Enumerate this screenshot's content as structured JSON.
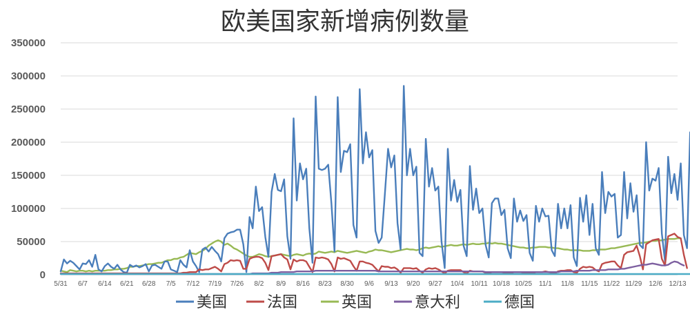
{
  "chart_data": {
    "type": "line",
    "title": "欧美国家新增病例数量",
    "xlabel": "",
    "ylabel": "",
    "ylim": [
      0,
      350000
    ],
    "yticks": [
      "0",
      "50000",
      "100000",
      "150000",
      "200000",
      "250000",
      "300000",
      "350000"
    ],
    "x_tick_labels": [
      "5/31",
      "6/7",
      "6/14",
      "6/21",
      "6/28",
      "7/5",
      "7/12",
      "7/19",
      "7/26",
      "8/2",
      "8/9",
      "8/16",
      "8/23",
      "8/30",
      "9/6",
      "9/13",
      "9/20",
      "9/27",
      "10/4",
      "10/11",
      "10/18",
      "10/25",
      "11/1",
      "11/8",
      "11/15",
      "11/22",
      "11/29",
      "12/6",
      "12/13"
    ],
    "grid": "horizontal",
    "legend_position": "bottom",
    "n_points": 197,
    "series": [
      {
        "name": "美国",
        "color": "#4a7ebb",
        "values": [
          5000,
          23000,
          17000,
          21000,
          18000,
          13000,
          8000,
          17000,
          16000,
          22000,
          12000,
          30000,
          8000,
          5000,
          13000,
          17000,
          12000,
          9000,
          15000,
          8000,
          4000,
          3000,
          15000,
          12000,
          14000,
          11000,
          13000,
          16000,
          5000,
          14000,
          15000,
          12000,
          9000,
          20000,
          20000,
          8000,
          6000,
          4000,
          22000,
          15000,
          11000,
          37000,
          20000,
          13000,
          4000,
          38000,
          41000,
          35000,
          42000,
          36000,
          31000,
          20000,
          55000,
          62000,
          64000,
          65000,
          68000,
          68000,
          46000,
          4000,
          87000,
          70000,
          133000,
          96000,
          102000,
          57000,
          27000,
          125000,
          152000,
          128000,
          126000,
          144000,
          58000,
          24000,
          236000,
          112000,
          168000,
          144000,
          160000,
          70000,
          18000,
          269000,
          160000,
          158000,
          160000,
          166000,
          108000,
          35000,
          268000,
          155000,
          187000,
          185000,
          197000,
          75000,
          56000,
          280000,
          168000,
          215000,
          177000,
          188000,
          66000,
          48000,
          56000,
          122000,
          190000,
          162000,
          180000,
          78000,
          38000,
          285000,
          150000,
          190000,
          150000,
          163000,
          33000,
          28000,
          205000,
          133000,
          161000,
          127000,
          133000,
          50000,
          10000,
          190000,
          112000,
          143000,
          110000,
          128000,
          44000,
          28000,
          164000,
          98000,
          130000,
          93000,
          100000,
          45000,
          26000,
          108000,
          115000,
          115000,
          90000,
          98000,
          40000,
          25000,
          115000,
          80000,
          97000,
          81000,
          90000,
          33000,
          21000,
          104000,
          80000,
          100000,
          88000,
          89000,
          37000,
          28000,
          107000,
          70000,
          100000,
          70000,
          105000,
          26000,
          13000,
          116000,
          80000,
          120000,
          60000,
          107000,
          40000,
          30000,
          155000,
          93000,
          125000,
          118000,
          122000,
          56000,
          60000,
          155000,
          85000,
          138000,
          95000,
          120000,
          45000,
          40000,
          200000,
          127000,
          145000,
          142000,
          161000,
          62000,
          20000,
          178000,
          123000,
          152000,
          113000,
          168000,
          60000,
          40000,
          215000
        ]
      },
      {
        "name": "法国",
        "color": "#be4b48",
        "values": [
          2000,
          2000,
          2000,
          2000,
          2000,
          2000,
          2000,
          2000,
          2000,
          2000,
          2000,
          2000,
          2000,
          2000,
          2000,
          2000,
          2000,
          2000,
          2000,
          2000,
          2000,
          2000,
          2000,
          2000,
          2000,
          2000,
          2000,
          2000,
          2000,
          2000,
          2000,
          2000,
          2000,
          2000,
          2000,
          2000,
          2000,
          2000,
          2000,
          3000,
          3000,
          4000,
          4000,
          4000,
          8000,
          7000,
          8000,
          8000,
          10000,
          12000,
          9000,
          5000,
          16000,
          18000,
          22000,
          21000,
          22000,
          21000,
          9000,
          9000,
          24000,
          26000,
          27000,
          27000,
          25000,
          18000,
          7000,
          28000,
          29000,
          30000,
          31000,
          26000,
          23000,
          8000,
          23000,
          20000,
          22000,
          22000,
          20000,
          12000,
          4000,
          26000,
          25000,
          26000,
          25000,
          23000,
          16000,
          5000,
          26000,
          24000,
          25000,
          23000,
          21000,
          13000,
          6000,
          20000,
          20000,
          18000,
          17000,
          15000,
          10000,
          5000,
          13000,
          12000,
          12000,
          10000,
          11000,
          8000,
          3000,
          10000,
          10000,
          10000,
          9000,
          10000,
          6000,
          3000,
          8000,
          10000,
          9000,
          10000,
          8000,
          5000,
          2000,
          6000,
          7000,
          7000,
          7000,
          7000,
          4000,
          2000,
          6000,
          5000,
          5000,
          5000,
          5000,
          3000,
          2000,
          4000,
          4000,
          4000,
          4000,
          3000,
          3000,
          2000,
          4000,
          4000,
          4000,
          3000,
          3000,
          3000,
          2000,
          4000,
          4000,
          4000,
          5000,
          4000,
          3000,
          2000,
          5000,
          6000,
          6000,
          7000,
          7000,
          4000,
          3000,
          9000,
          12000,
          11000,
          12000,
          11000,
          7000,
          5000,
          16000,
          18000,
          19000,
          20000,
          20000,
          14000,
          10000,
          30000,
          34000,
          35000,
          36000,
          44000,
          28000,
          8000,
          46000,
          49000,
          52000,
          53000,
          54000,
          24000,
          14000,
          58000,
          60000,
          62000,
          57000,
          55000,
          30000,
          10000
        ]
      },
      {
        "name": "英国",
        "color": "#98b954",
        "values": [
          6000,
          5000,
          4000,
          7000,
          6000,
          5000,
          6000,
          6000,
          5000,
          6000,
          5000,
          6000,
          6000,
          6000,
          6000,
          7000,
          7000,
          8000,
          8000,
          9000,
          9000,
          10000,
          12000,
          12000,
          13000,
          13000,
          14000,
          15000,
          16000,
          16000,
          17000,
          18000,
          18000,
          20000,
          22000,
          22000,
          24000,
          24000,
          26000,
          27000,
          30000,
          33000,
          32000,
          31000,
          34000,
          36000,
          39000,
          44000,
          47000,
          50000,
          52000,
          50000,
          45000,
          47000,
          44000,
          40000,
          38000,
          35000,
          32000,
          29000,
          27000,
          27000,
          29000,
          31000,
          30000,
          28000,
          27000,
          28000,
          29000,
          30000,
          31000,
          30000,
          29000,
          28000,
          30000,
          31000,
          30000,
          29000,
          31000,
          32000,
          31000,
          32000,
          35000,
          34000,
          33000,
          34000,
          35000,
          34000,
          36000,
          35000,
          34000,
          33000,
          34000,
          35000,
          36000,
          35000,
          34000,
          33000,
          35000,
          36000,
          38000,
          37000,
          37000,
          36000,
          35000,
          34000,
          35000,
          36000,
          37000,
          38000,
          39000,
          38000,
          38000,
          37000,
          38000,
          40000,
          41000,
          40000,
          41000,
          42000,
          43000,
          42000,
          43000,
          44000,
          45000,
          44000,
          44000,
          45000,
          46000,
          45000,
          46000,
          47000,
          46000,
          46000,
          47000,
          47000,
          48000,
          47000,
          48000,
          47000,
          47000,
          46000,
          45000,
          44000,
          43000,
          42000,
          41000,
          41000,
          40000,
          40000,
          41000,
          41000,
          42000,
          42000,
          42000,
          41000,
          41000,
          40000,
          40000,
          39000,
          38000,
          38000,
          37000,
          37000,
          37000,
          37000,
          36000,
          36000,
          36000,
          37000,
          37000,
          38000,
          38000,
          38000,
          39000,
          40000,
          40000,
          41000,
          42000,
          43000,
          44000,
          45000,
          46000,
          47000,
          48000,
          48000,
          49000,
          50000,
          51000,
          51000,
          52000,
          52000,
          53000,
          54000,
          54000,
          54000,
          55000,
          55000
        ]
      },
      {
        "name": "意大利",
        "color": "#7d5fa0",
        "values": [
          1000,
          1000,
          1000,
          1000,
          1000,
          1000,
          1000,
          1000,
          1000,
          1000,
          1000,
          1000,
          1000,
          1000,
          1000,
          1000,
          1000,
          1000,
          1000,
          1000,
          1000,
          1000,
          1000,
          1000,
          1000,
          1000,
          1000,
          1000,
          1000,
          1000,
          1000,
          1000,
          1000,
          1000,
          1000,
          1000,
          1000,
          1000,
          1000,
          1000,
          1000,
          1000,
          1000,
          1000,
          1000,
          1000,
          1000,
          1000,
          1000,
          1000,
          1000,
          1000,
          1000,
          1000,
          1000,
          1000,
          1000,
          1000,
          1000,
          1000,
          1000,
          2000,
          2000,
          2000,
          2000,
          2000,
          2000,
          3000,
          3000,
          3000,
          4000,
          4000,
          4000,
          4000,
          4000,
          5000,
          5000,
          5000,
          5000,
          5000,
          5000,
          6000,
          6000,
          6000,
          6000,
          6000,
          6000,
          6000,
          6000,
          6000,
          6000,
          6000,
          6000,
          6000,
          6000,
          6000,
          6000,
          6000,
          6000,
          6000,
          6000,
          5000,
          5000,
          5000,
          5000,
          5000,
          5000,
          5000,
          5000,
          5000,
          5000,
          5000,
          5000,
          5000,
          5000,
          5000,
          5000,
          5000,
          5000,
          5000,
          5000,
          5000,
          5000,
          5000,
          5000,
          5000,
          5000,
          5000,
          5000,
          5000,
          5000,
          5000,
          5000,
          5000,
          5000,
          4000,
          4000,
          4000,
          4000,
          4000,
          4000,
          4000,
          4000,
          4000,
          4000,
          4000,
          4000,
          4000,
          4000,
          4000,
          4000,
          4000,
          4000,
          4000,
          4000,
          4000,
          4000,
          4000,
          4000,
          5000,
          5000,
          5000,
          5000,
          5000,
          6000,
          6000,
          6000,
          6000,
          6000,
          7000,
          7000,
          7000,
          7000,
          7000,
          8000,
          8000,
          8000,
          8000,
          9000,
          9000,
          10000,
          11000,
          12000,
          13000,
          14000,
          15000,
          15000,
          16000,
          17000,
          16000,
          15000,
          14000,
          14000,
          15000,
          18000,
          20000,
          19000,
          16000,
          14000
        ]
      },
      {
        "name": "德国",
        "color": "#4bacc6",
        "values": [
          1000,
          1000,
          1000,
          1000,
          1000,
          1000,
          1000,
          1000,
          1000,
          1000,
          1000,
          1000,
          1000,
          1000,
          1000,
          1000,
          1000,
          1000,
          1000,
          1000,
          1000,
          1000,
          1000,
          1000,
          1000,
          1000,
          1000,
          1000,
          1000,
          1000,
          1000,
          1000,
          1000,
          1000,
          1000,
          1000,
          1000,
          1000,
          1000,
          1000,
          1000,
          1000,
          1000,
          1000,
          1000,
          1000,
          1000,
          1000,
          1000,
          1000,
          1000,
          1000,
          1000,
          1000,
          1000,
          1000,
          1000,
          1000,
          1000,
          1000,
          1000,
          1000,
          1000,
          1000,
          1000,
          1000,
          1000,
          1000,
          1000,
          1000,
          1000,
          1000,
          1000,
          1000,
          1000,
          1000,
          1000,
          1000,
          1000,
          1000,
          1000,
          1000,
          1000,
          1000,
          1000,
          1000,
          1000,
          1000,
          1000,
          1000,
          1000,
          1000,
          1000,
          1000,
          1000,
          1000,
          1000,
          1000,
          1000,
          1000,
          1000,
          1000,
          1000,
          1000,
          1000,
          1000,
          1000,
          1000,
          1000,
          1000,
          1000,
          1000,
          1000,
          1000,
          1000,
          1000,
          1000,
          1000,
          1000,
          1000,
          1000,
          1000,
          1000,
          1000,
          1000,
          1000,
          1000,
          1000,
          1000,
          1000,
          1000,
          1000,
          1000,
          1000,
          1000,
          1000,
          1000,
          1000,
          1000,
          1000,
          1000,
          1000,
          1000,
          1000,
          1000,
          1000,
          1000,
          1000,
          1000,
          1000,
          1000,
          1000,
          1000,
          1000,
          1000,
          1000,
          1000,
          1000,
          1000,
          1000,
          1000,
          1000,
          1000,
          1000,
          1000,
          1000,
          1000,
          1000,
          1000,
          1000,
          1000,
          1000,
          1000,
          1000,
          1000,
          1000,
          1000,
          1000,
          1000,
          1000,
          1000,
          1000,
          1000,
          1000,
          1000,
          1000,
          1000,
          1000,
          1000,
          1000,
          1000,
          1000,
          1000,
          1000,
          1000,
          1000,
          1000,
          1000,
          1000,
          1000,
          1000,
          1000,
          1000
        ]
      }
    ]
  }
}
